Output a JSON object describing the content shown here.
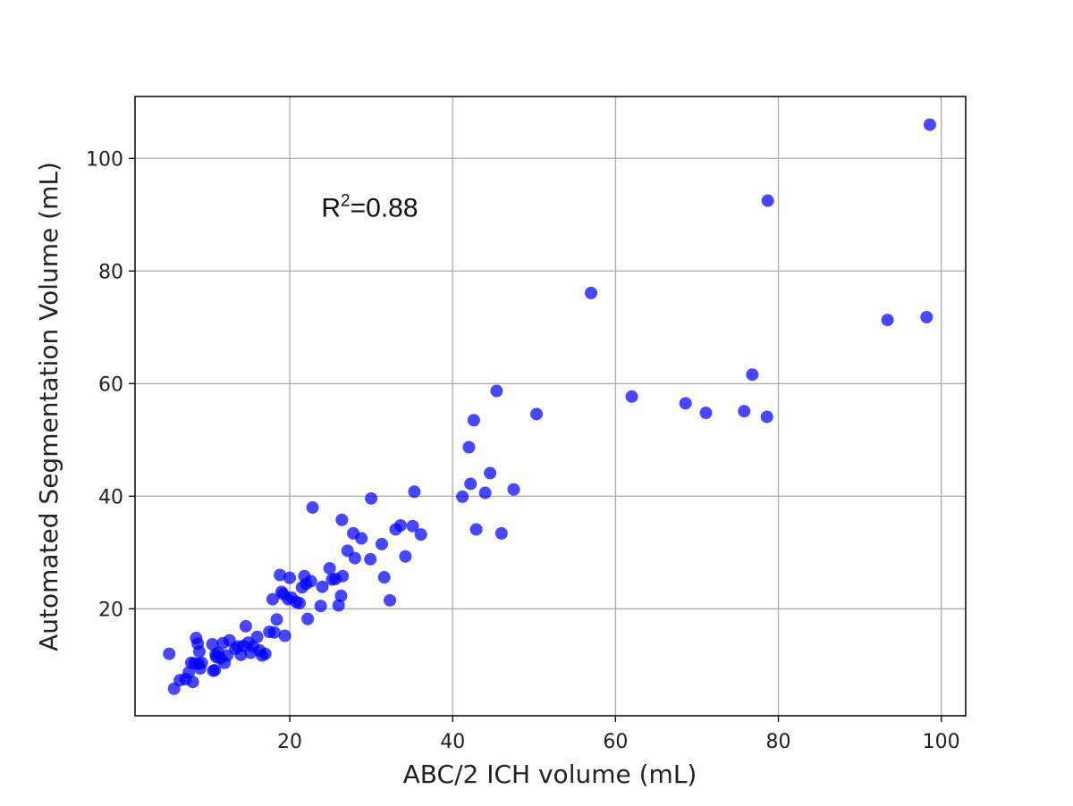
{
  "chart_data": {
    "type": "scatter",
    "title": "",
    "xlabel": "ABC/2 ICH volume (mL)",
    "ylabel": "Automated Segmentation Volume (mL)",
    "xlim": [
      1,
      103
    ],
    "ylim": [
      1,
      111
    ],
    "xticks": [
      20,
      40,
      60,
      80,
      100
    ],
    "yticks": [
      20,
      40,
      60,
      80,
      100
    ],
    "grid": true,
    "color": "#0000ff",
    "annotation": {
      "base": "R",
      "sup": "2",
      "value": "=0.88",
      "x": 23,
      "y": 90
    },
    "points": [
      [
        5.2,
        12.0
      ],
      [
        5.8,
        5.8
      ],
      [
        6.5,
        7.3
      ],
      [
        7.2,
        7.5
      ],
      [
        7.6,
        8.7
      ],
      [
        7.9,
        10.4
      ],
      [
        8.1,
        7.0
      ],
      [
        8.3,
        10.3
      ],
      [
        8.5,
        14.8
      ],
      [
        8.7,
        13.8
      ],
      [
        8.8,
        10.2
      ],
      [
        8.9,
        12.4
      ],
      [
        9.0,
        9.4
      ],
      [
        9.2,
        10.4
      ],
      [
        10.5,
        13.7
      ],
      [
        10.6,
        9.0
      ],
      [
        10.8,
        9.1
      ],
      [
        10.9,
        11.9
      ],
      [
        11.0,
        11.4
      ],
      [
        11.2,
        12.2
      ],
      [
        11.5,
        11.2
      ],
      [
        11.8,
        13.9
      ],
      [
        12.0,
        10.4
      ],
      [
        12.3,
        11.7
      ],
      [
        12.6,
        14.4
      ],
      [
        13.3,
        12.9
      ],
      [
        13.6,
        13.3
      ],
      [
        14.0,
        11.8
      ],
      [
        14.3,
        13.4
      ],
      [
        14.6,
        16.9
      ],
      [
        14.9,
        14.0
      ],
      [
        15.2,
        12.2
      ],
      [
        15.5,
        13.3
      ],
      [
        16.0,
        15.0
      ],
      [
        16.3,
        12.6
      ],
      [
        16.6,
        11.7
      ],
      [
        17.0,
        12.0
      ],
      [
        17.5,
        15.9
      ],
      [
        17.9,
        21.7
      ],
      [
        18.1,
        15.8
      ],
      [
        18.4,
        18.1
      ],
      [
        18.8,
        26.0
      ],
      [
        19.0,
        23.0
      ],
      [
        19.2,
        22.6
      ],
      [
        19.4,
        15.2
      ],
      [
        19.8,
        21.7
      ],
      [
        20.0,
        25.5
      ],
      [
        20.2,
        22.0
      ],
      [
        20.8,
        21.2
      ],
      [
        21.2,
        21.0
      ],
      [
        21.5,
        23.8
      ],
      [
        21.8,
        25.8
      ],
      [
        22.0,
        24.4
      ],
      [
        22.2,
        18.2
      ],
      [
        22.6,
        24.9
      ],
      [
        22.8,
        38.0
      ],
      [
        23.8,
        20.5
      ],
      [
        24.0,
        23.9
      ],
      [
        24.9,
        27.2
      ],
      [
        25.2,
        25.2
      ],
      [
        25.6,
        25.3
      ],
      [
        26.0,
        20.6
      ],
      [
        26.3,
        22.3
      ],
      [
        26.4,
        35.8
      ],
      [
        26.5,
        25.8
      ],
      [
        27.1,
        30.3
      ],
      [
        27.8,
        33.4
      ],
      [
        28.0,
        29.0
      ],
      [
        28.8,
        32.5
      ],
      [
        29.9,
        28.8
      ],
      [
        30.0,
        39.6
      ],
      [
        31.3,
        31.5
      ],
      [
        31.6,
        25.6
      ],
      [
        32.3,
        21.5
      ],
      [
        33.0,
        34.1
      ],
      [
        33.6,
        34.8
      ],
      [
        34.2,
        29.3
      ],
      [
        35.1,
        34.7
      ],
      [
        35.3,
        40.8
      ],
      [
        36.1,
        33.2
      ],
      [
        41.2,
        39.9
      ],
      [
        42.0,
        48.7
      ],
      [
        42.2,
        42.2
      ],
      [
        42.6,
        53.5
      ],
      [
        42.9,
        34.1
      ],
      [
        44.0,
        40.6
      ],
      [
        44.6,
        44.1
      ],
      [
        45.4,
        58.7
      ],
      [
        46.0,
        33.4
      ],
      [
        47.5,
        41.2
      ],
      [
        50.3,
        54.6
      ],
      [
        57.0,
        76.1
      ],
      [
        62.0,
        57.7
      ],
      [
        68.6,
        56.5
      ],
      [
        71.1,
        54.8
      ],
      [
        75.8,
        55.1
      ],
      [
        76.8,
        61.6
      ],
      [
        78.6,
        54.1
      ],
      [
        78.7,
        92.5
      ],
      [
        93.4,
        71.3
      ],
      [
        98.2,
        71.8
      ],
      [
        98.6,
        106.0
      ]
    ]
  }
}
